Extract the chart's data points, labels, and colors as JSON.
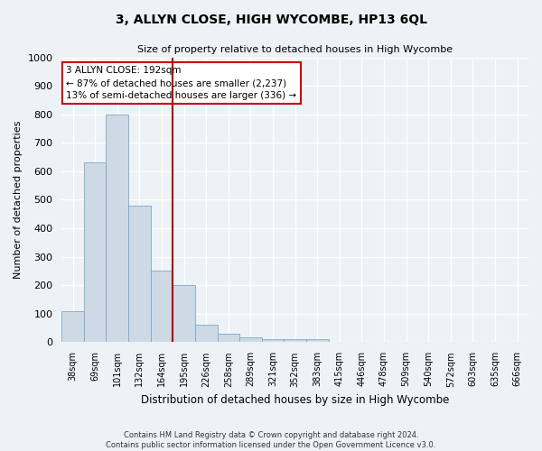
{
  "title": "3, ALLYN CLOSE, HIGH WYCOMBE, HP13 6QL",
  "subtitle": "Size of property relative to detached houses in High Wycombe",
  "xlabel": "Distribution of detached houses by size in High Wycombe",
  "ylabel": "Number of detached properties",
  "bar_color": "#cdd9e5",
  "bar_edge_color": "#7aaaca",
  "categories": [
    "38sqm",
    "69sqm",
    "101sqm",
    "132sqm",
    "164sqm",
    "195sqm",
    "226sqm",
    "258sqm",
    "289sqm",
    "321sqm",
    "352sqm",
    "383sqm",
    "415sqm",
    "446sqm",
    "478sqm",
    "509sqm",
    "540sqm",
    "572sqm",
    "603sqm",
    "635sqm",
    "666sqm"
  ],
  "values": [
    110,
    630,
    800,
    480,
    250,
    200,
    62,
    30,
    18,
    12,
    10,
    10,
    0,
    0,
    0,
    0,
    0,
    0,
    0,
    0,
    0
  ],
  "ylim": [
    0,
    1000
  ],
  "yticks": [
    0,
    100,
    200,
    300,
    400,
    500,
    600,
    700,
    800,
    900,
    1000
  ],
  "vline_index": 5,
  "vline_color": "#aa0000",
  "annotation_text": "3 ALLYN CLOSE: 192sqm\n← 87% of detached houses are smaller (2,237)\n13% of semi-detached houses are larger (336) →",
  "annotation_box_color": "#ffffff",
  "annotation_box_edge": "#cc0000",
  "footer_line1": "Contains HM Land Registry data © Crown copyright and database right 2024.",
  "footer_line2": "Contains public sector information licensed under the Open Government Licence v3.0.",
  "background_color": "#edf2f7",
  "grid_color": "#ffffff"
}
